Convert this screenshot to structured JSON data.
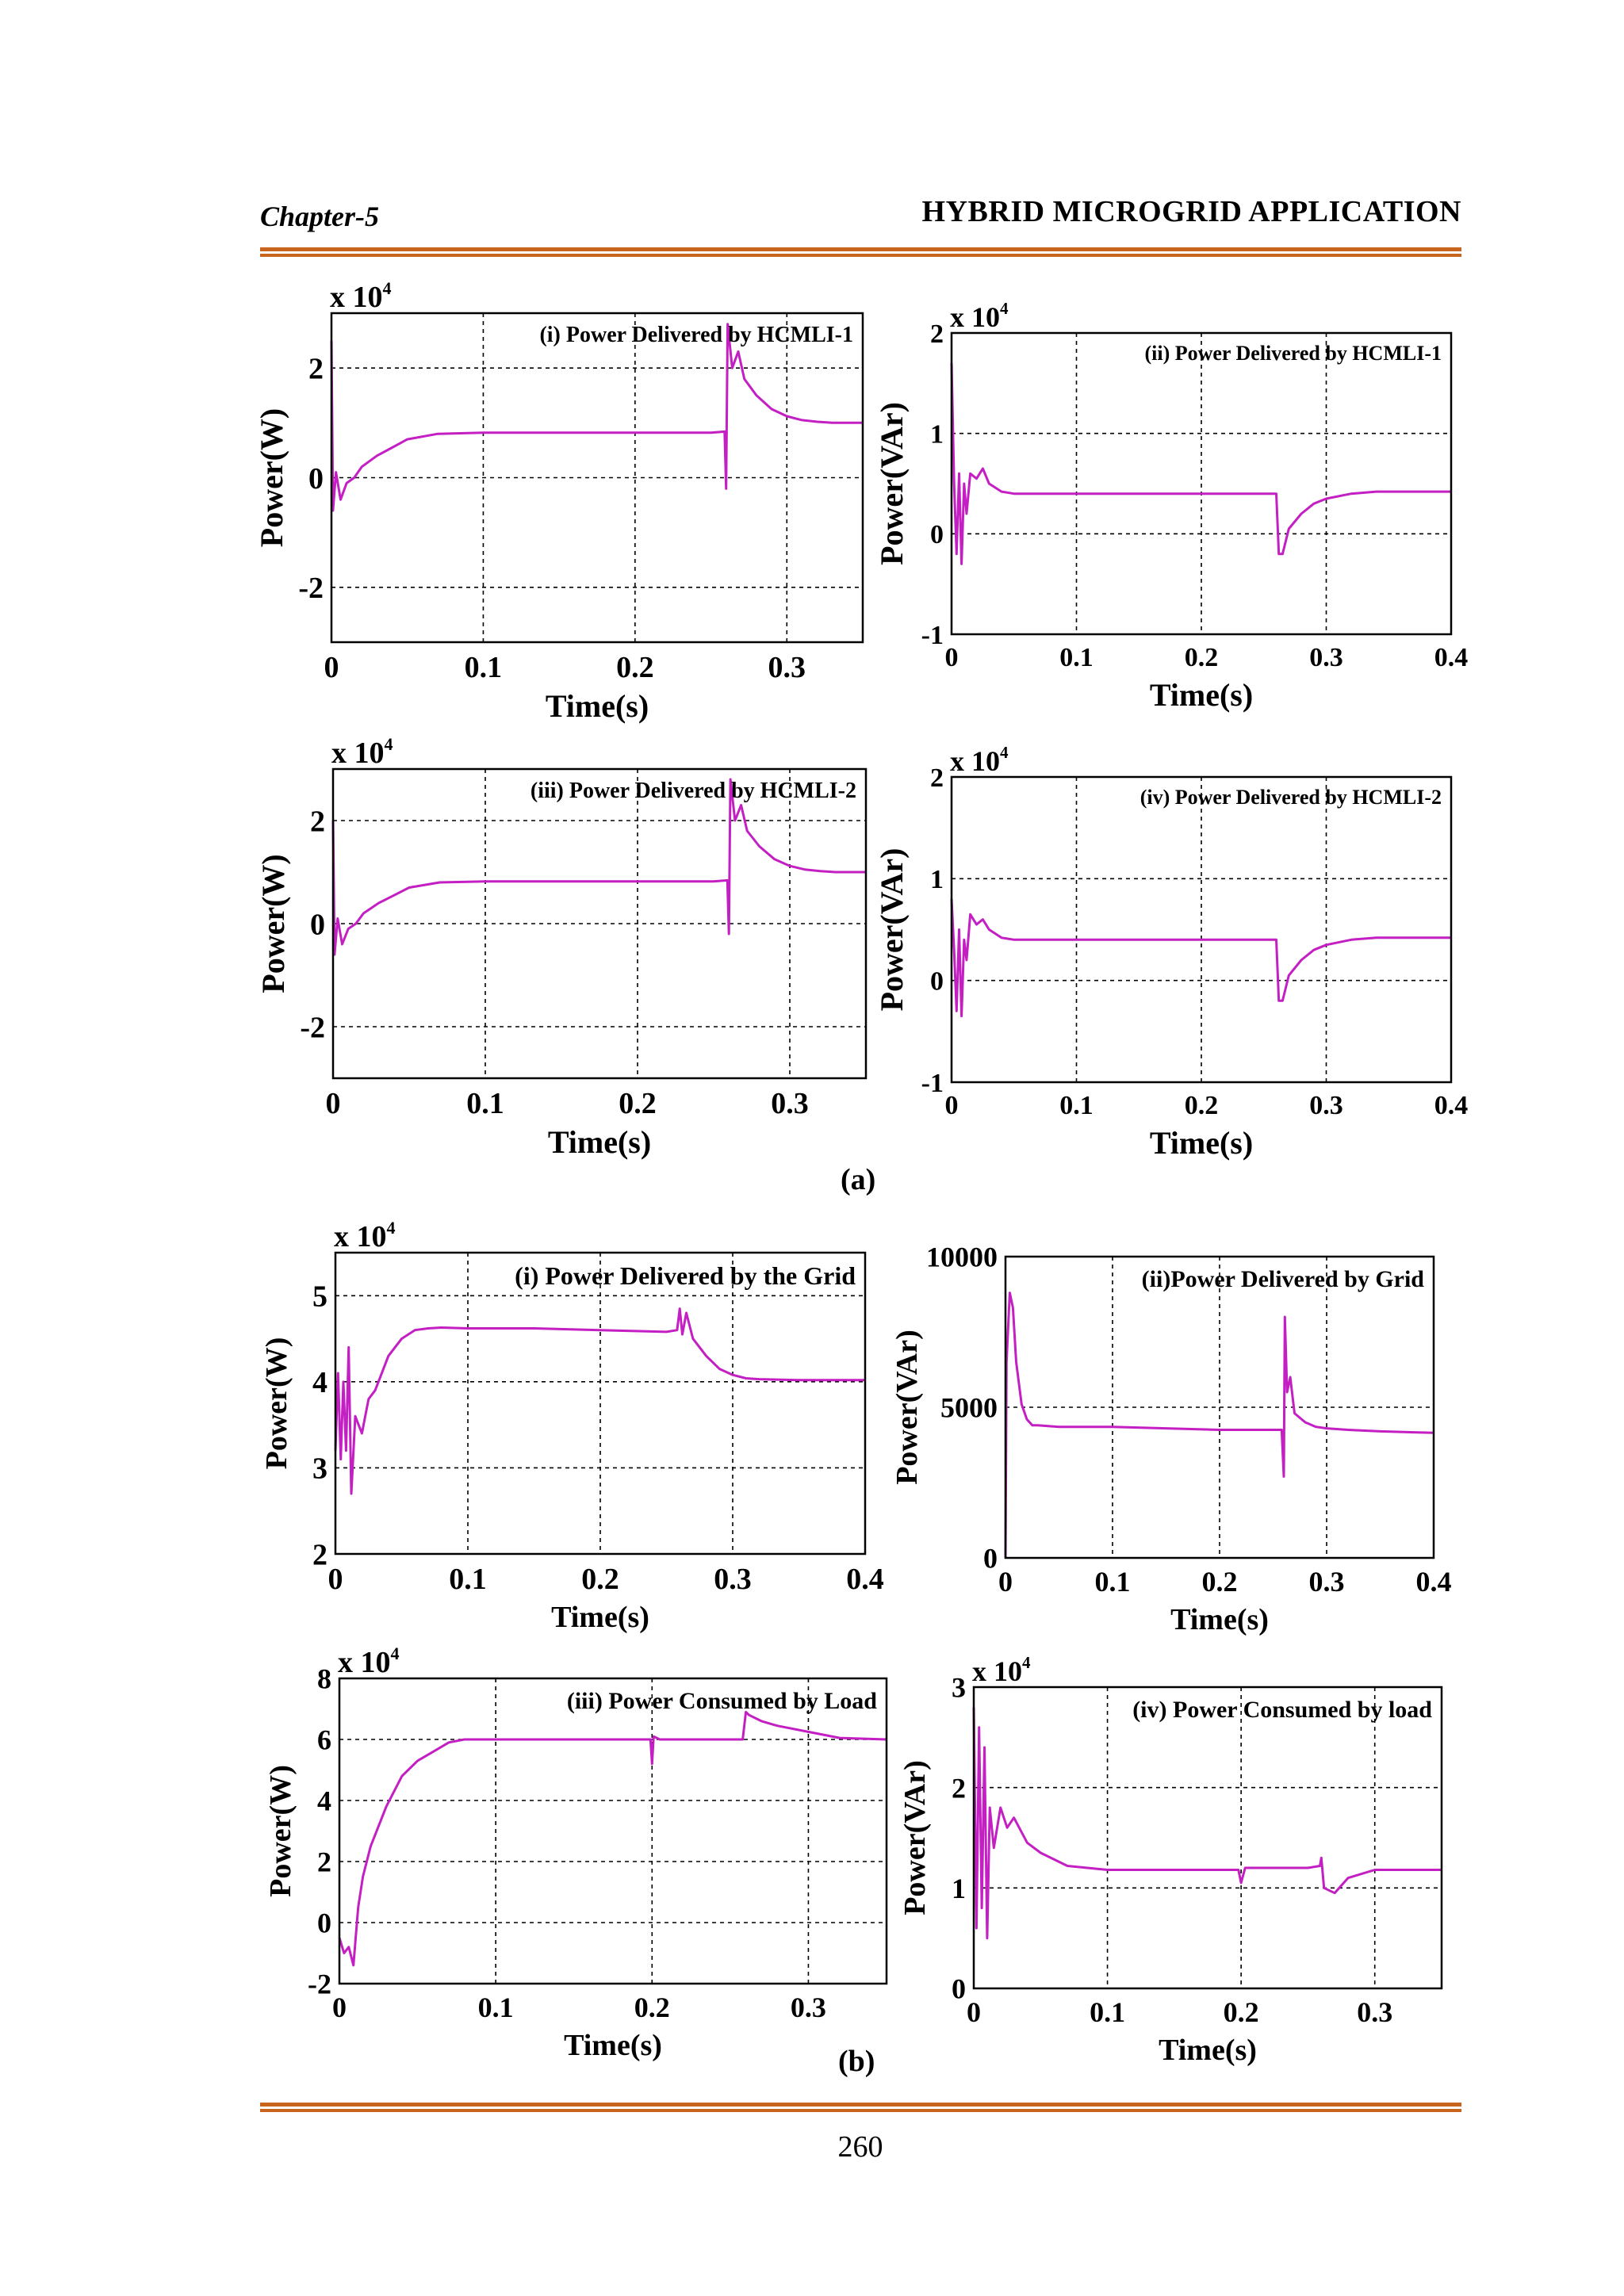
{
  "header": {
    "chapter": "Chapter-5",
    "title": "HYBRID MICROGRID APPLICATION"
  },
  "captions": {
    "a": "(a)",
    "b": "(b)"
  },
  "page_number": "260",
  "chart_data": [
    {
      "id": "a-i",
      "type": "line",
      "title": "(i) Power Delivered by HCMLI-1",
      "xlabel": "Time(s)",
      "ylabel": "Power(W)",
      "yexp": "x 10",
      "yexp_sup": "4",
      "xlim": [
        0,
        0.35
      ],
      "ylim": [
        -3,
        3
      ],
      "xticks": [
        0,
        0.1,
        0.2,
        0.3
      ],
      "xticklabels": [
        "0",
        "0.1",
        "0.2",
        "0.3"
      ],
      "yticks": [
        -2,
        0,
        2
      ],
      "yticklabels": [
        "-2",
        "0",
        "2"
      ],
      "color": "#c31fc3",
      "x": [
        0,
        0.001,
        0.003,
        0.006,
        0.01,
        0.015,
        0.02,
        0.03,
        0.04,
        0.05,
        0.07,
        0.1,
        0.15,
        0.2,
        0.25,
        0.259,
        0.26,
        0.261,
        0.264,
        0.268,
        0.272,
        0.28,
        0.29,
        0.3,
        0.31,
        0.32,
        0.33,
        0.35
      ],
      "y": [
        2.5,
        -0.6,
        0.1,
        -0.4,
        -0.1,
        0,
        0.2,
        0.4,
        0.55,
        0.7,
        0.8,
        0.82,
        0.82,
        0.82,
        0.82,
        0.84,
        -0.2,
        2.8,
        2.0,
        2.3,
        1.8,
        1.5,
        1.25,
        1.12,
        1.05,
        1.02,
        1.0,
        1.0
      ]
    },
    {
      "id": "a-ii",
      "type": "line",
      "title": "(ii) Power  Delivered by HCMLI-1",
      "xlabel": "Time(s)",
      "ylabel": "Power(VAr)",
      "yexp": "x 10",
      "yexp_sup": "4",
      "xlim": [
        0,
        0.4
      ],
      "ylim": [
        -1,
        2
      ],
      "xticks": [
        0,
        0.1,
        0.2,
        0.3,
        0.4
      ],
      "xticklabels": [
        "0",
        "0.1",
        "0.2",
        "0.3",
        "0.4"
      ],
      "yticks": [
        -1,
        0,
        1,
        2
      ],
      "yticklabels": [
        "-1",
        "0",
        "1",
        "2"
      ],
      "color": "#c31fc3",
      "x": [
        0,
        0.002,
        0.004,
        0.006,
        0.008,
        0.01,
        0.012,
        0.015,
        0.02,
        0.025,
        0.03,
        0.04,
        0.05,
        0.1,
        0.15,
        0.2,
        0.25,
        0.26,
        0.262,
        0.265,
        0.27,
        0.28,
        0.29,
        0.3,
        0.32,
        0.34,
        0.4
      ],
      "y": [
        1.7,
        0.5,
        -0.2,
        0.6,
        -0.3,
        0.5,
        0.2,
        0.6,
        0.55,
        0.65,
        0.5,
        0.42,
        0.4,
        0.4,
        0.4,
        0.4,
        0.4,
        0.4,
        -0.2,
        -0.2,
        0.05,
        0.2,
        0.3,
        0.35,
        0.4,
        0.42,
        0.42
      ]
    },
    {
      "id": "a-iii",
      "type": "line",
      "title": "(iii) Power Delivered by HCMLI-2",
      "xlabel": "Time(s)",
      "ylabel": "Power(W)",
      "yexp": "x 10",
      "yexp_sup": "4",
      "xlim": [
        0,
        0.35
      ],
      "ylim": [
        -3,
        3
      ],
      "xticks": [
        0,
        0.1,
        0.2,
        0.3
      ],
      "xticklabels": [
        "0",
        "0.1",
        "0.2",
        "0.3"
      ],
      "yticks": [
        -2,
        0,
        2
      ],
      "yticklabels": [
        "-2",
        "0",
        "2"
      ],
      "color": "#c31fc3",
      "x": [
        0,
        0.001,
        0.003,
        0.006,
        0.01,
        0.015,
        0.02,
        0.03,
        0.04,
        0.05,
        0.07,
        0.1,
        0.15,
        0.2,
        0.25,
        0.259,
        0.26,
        0.261,
        0.264,
        0.268,
        0.272,
        0.28,
        0.29,
        0.3,
        0.31,
        0.32,
        0.33,
        0.35
      ],
      "y": [
        2.0,
        -0.6,
        0.1,
        -0.4,
        -0.1,
        0,
        0.2,
        0.4,
        0.55,
        0.7,
        0.8,
        0.82,
        0.82,
        0.82,
        0.82,
        0.84,
        -0.2,
        2.8,
        2.0,
        2.3,
        1.8,
        1.5,
        1.25,
        1.12,
        1.05,
        1.02,
        1.0,
        1.0
      ]
    },
    {
      "id": "a-iv",
      "type": "line",
      "title": "(iv) Power  Delivered by HCMLI-2",
      "xlabel": "Time(s)",
      "ylabel": "Power(VAr)",
      "yexp": "x 10",
      "yexp_sup": "4",
      "xlim": [
        0,
        0.4
      ],
      "ylim": [
        -1,
        2
      ],
      "xticks": [
        0,
        0.1,
        0.2,
        0.3,
        0.4
      ],
      "xticklabels": [
        "0",
        "0.1",
        "0.2",
        "0.3",
        "0.4"
      ],
      "yticks": [
        -1,
        0,
        1,
        2
      ],
      "yticklabels": [
        "-1",
        "0",
        "1",
        "2"
      ],
      "color": "#c31fc3",
      "x": [
        0,
        0.002,
        0.004,
        0.006,
        0.008,
        0.01,
        0.012,
        0.015,
        0.02,
        0.025,
        0.03,
        0.04,
        0.05,
        0.1,
        0.15,
        0.2,
        0.25,
        0.26,
        0.262,
        0.265,
        0.27,
        0.28,
        0.29,
        0.3,
        0.32,
        0.34,
        0.4
      ],
      "y": [
        0.8,
        0.3,
        -0.3,
        0.5,
        -0.35,
        0.4,
        0.2,
        0.65,
        0.55,
        0.6,
        0.5,
        0.42,
        0.4,
        0.4,
        0.4,
        0.4,
        0.4,
        0.4,
        -0.2,
        -0.2,
        0.05,
        0.2,
        0.3,
        0.35,
        0.4,
        0.42,
        0.42
      ]
    },
    {
      "id": "b-i",
      "type": "line",
      "title": "(i) Power Delivered by the Grid",
      "xlabel": "Time(s)",
      "ylabel": "Power(W)",
      "yexp": "x 10",
      "yexp_sup": "4",
      "xlim": [
        0,
        0.4
      ],
      "ylim": [
        2,
        5.5
      ],
      "xticks": [
        0,
        0.1,
        0.2,
        0.3,
        0.4
      ],
      "xticklabels": [
        "0",
        "0.1",
        "0.2",
        "0.3",
        "0.4"
      ],
      "yticks": [
        2,
        3,
        4,
        5
      ],
      "yticklabels": [
        "2",
        "3",
        "4",
        "5"
      ],
      "color": "#c31fc3",
      "x": [
        0,
        0.002,
        0.004,
        0.006,
        0.008,
        0.01,
        0.012,
        0.015,
        0.02,
        0.025,
        0.03,
        0.04,
        0.05,
        0.06,
        0.07,
        0.08,
        0.1,
        0.15,
        0.2,
        0.25,
        0.258,
        0.26,
        0.262,
        0.265,
        0.27,
        0.28,
        0.29,
        0.3,
        0.31,
        0.32,
        0.35,
        0.4
      ],
      "y": [
        3.2,
        4.1,
        3.1,
        4.0,
        3.2,
        4.4,
        2.7,
        3.6,
        3.4,
        3.8,
        3.9,
        4.3,
        4.5,
        4.6,
        4.62,
        4.63,
        4.62,
        4.62,
        4.6,
        4.58,
        4.6,
        4.85,
        4.55,
        4.8,
        4.5,
        4.3,
        4.15,
        4.08,
        4.04,
        4.03,
        4.02,
        4.02
      ]
    },
    {
      "id": "b-ii",
      "type": "line",
      "title": "(ii)Power Delivered by Grid",
      "xlabel": "Time(s)",
      "ylabel": "Power(VAr)",
      "yexp": "",
      "yexp_sup": "",
      "xlim": [
        0,
        0.4
      ],
      "ylim": [
        0,
        10000
      ],
      "xticks": [
        0,
        0.1,
        0.2,
        0.3,
        0.4
      ],
      "xticklabels": [
        "0",
        "0.1",
        "0.2",
        "0.3",
        "0.4"
      ],
      "yticks": [
        0,
        5000,
        10000
      ],
      "yticklabels": [
        "0",
        "5000",
        "10000"
      ],
      "color": "#c31fc3",
      "x": [
        0,
        0.001,
        0.004,
        0.007,
        0.01,
        0.015,
        0.02,
        0.025,
        0.03,
        0.05,
        0.1,
        0.15,
        0.2,
        0.25,
        0.258,
        0.26,
        0.261,
        0.263,
        0.266,
        0.27,
        0.28,
        0.29,
        0.3,
        0.32,
        0.35,
        0.4
      ],
      "y": [
        0,
        6500,
        8800,
        8300,
        6500,
        5100,
        4600,
        4400,
        4400,
        4350,
        4350,
        4300,
        4250,
        4250,
        4250,
        2700,
        8000,
        5500,
        6000,
        4800,
        4500,
        4350,
        4300,
        4250,
        4200,
        4150
      ]
    },
    {
      "id": "b-iii",
      "type": "line",
      "title": "(iii) Power Consumed by Load",
      "xlabel": "Time(s)",
      "ylabel": "Power(W)",
      "yexp": "x 10",
      "yexp_sup": "4",
      "xlim": [
        0,
        0.35
      ],
      "ylim": [
        -2,
        8
      ],
      "xticks": [
        0,
        0.1,
        0.2,
        0.3
      ],
      "xticklabels": [
        "0",
        "0.1",
        "0.2",
        "0.3"
      ],
      "yticks": [
        -2,
        0,
        2,
        4,
        6,
        8
      ],
      "yticklabels": [
        "-2",
        "0",
        "2",
        "4",
        "6",
        "8"
      ],
      "color": "#c31fc3",
      "x": [
        0,
        0.003,
        0.006,
        0.009,
        0.012,
        0.015,
        0.02,
        0.03,
        0.04,
        0.05,
        0.06,
        0.07,
        0.08,
        0.1,
        0.15,
        0.199,
        0.2,
        0.201,
        0.205,
        0.25,
        0.258,
        0.26,
        0.262,
        0.27,
        0.28,
        0.3,
        0.32,
        0.35
      ],
      "y": [
        -0.5,
        -1,
        -0.8,
        -1.4,
        0.5,
        1.5,
        2.5,
        3.8,
        4.8,
        5.3,
        5.6,
        5.9,
        6.0,
        6.0,
        6.0,
        6.0,
        5.2,
        6.1,
        6.0,
        6.0,
        6.0,
        6.9,
        6.8,
        6.6,
        6.45,
        6.25,
        6.05,
        6.0
      ]
    },
    {
      "id": "b-iv",
      "type": "line",
      "title": "(iv) Power Consumed by load",
      "xlabel": "Time(s)",
      "ylabel": "Power(VAr)",
      "yexp": "x 10",
      "yexp_sup": "4",
      "xlim": [
        0,
        0.35
      ],
      "ylim": [
        0,
        3
      ],
      "xticks": [
        0,
        0.1,
        0.2,
        0.3
      ],
      "xticklabels": [
        "0",
        "0.1",
        "0.2",
        "0.3"
      ],
      "yticks": [
        0,
        1,
        2,
        3
      ],
      "yticklabels": [
        "0",
        "1",
        "2",
        "3"
      ],
      "color": "#c31fc3",
      "x": [
        0,
        0.002,
        0.004,
        0.006,
        0.008,
        0.01,
        0.012,
        0.015,
        0.02,
        0.025,
        0.03,
        0.04,
        0.05,
        0.07,
        0.1,
        0.15,
        0.198,
        0.2,
        0.203,
        0.25,
        0.259,
        0.26,
        0.262,
        0.27,
        0.28,
        0.3,
        0.35
      ],
      "y": [
        2.8,
        0.6,
        2.6,
        0.8,
        2.4,
        0.5,
        1.8,
        1.4,
        1.8,
        1.6,
        1.7,
        1.45,
        1.35,
        1.22,
        1.18,
        1.18,
        1.18,
        1.05,
        1.2,
        1.2,
        1.22,
        1.3,
        1.0,
        0.95,
        1.1,
        1.18,
        1.18
      ]
    }
  ]
}
